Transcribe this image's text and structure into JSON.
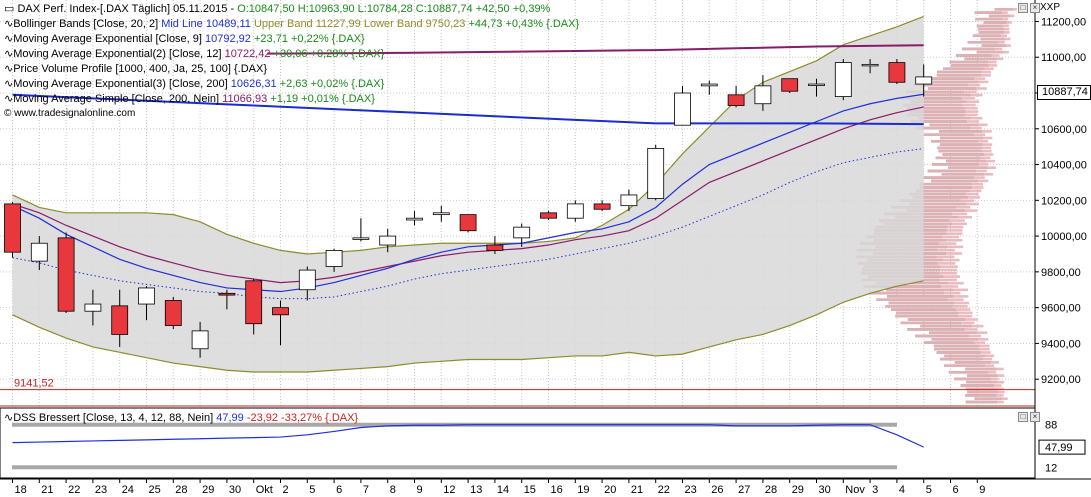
{
  "header": {
    "main": {
      "name": "DAX Perf. Index-[.DAX  Täglich] 05.11.2015 -",
      "ohlc": "O:10847,50 H:10963,90 L:10784,28 C:10887,74 +42,50 +0,39%"
    },
    "indicators": [
      {
        "name": "Bollinger Bands [Close, 20, 2]",
        "mid": "Mid Line 10489,11",
        "upper": "Upper Band 11227,99",
        "lower": "Lower Band 9750,23",
        "change": "+44,73 +0,43% {.DAX}"
      },
      {
        "name": "Moving Average Exponential [Close, 9]",
        "value": "10792,92",
        "change": "+23,71 +0,22% {.DAX}"
      },
      {
        "name": "Moving Average Exponential(2) [Close, 12]",
        "value": "10722,42",
        "change": "+30,06 +0,28% {.DAX}"
      },
      {
        "name": "Price Volume Profile [1000, 400, Ja, 25, 100] {.DAX}"
      },
      {
        "name": "Moving Average Exponential(3) [Close, 200]",
        "value": "10626,31",
        "change": "+2,63 +0,02% {.DAX}"
      },
      {
        "name": "Moving Average Simple [Close, 200, Nein]",
        "value": "11066,93",
        "change": "+1,19 +0,01% {.DAX}"
      }
    ],
    "copyright": "© www.tradesignalonline.com",
    "axis_title": "XXP",
    "window_buttons": [
      "□",
      "×"
    ]
  },
  "dss": {
    "name": "DSS Bressert [Close, 13, 4, 12, 88, Nein]",
    "value": "47,99",
    "change": "-23,92 -33,27% {.DAX}",
    "levels": [
      "88",
      "47,99",
      "12"
    ]
  },
  "price_tag": "10887,74",
  "support_label": "9141,52",
  "colors": {
    "up": "#ffffff",
    "down": "#e8383d",
    "bb_fill": "#d8d8d8",
    "bb_line": "#8c8c2c",
    "ema9": "#1f2fd8",
    "ema12": "#8a1a6a",
    "ema200": "#1a2bd0",
    "sma200": "#8a1a6a",
    "dss": "#1f2fd8",
    "support": "#d02020"
  },
  "chart_data": {
    "type": "candlestick",
    "y_ticks": [
      "11200,00",
      "11000,00",
      "10800,00",
      "10600,00",
      "10400,00",
      "10200,00",
      "10000,00",
      "9800,00",
      "9600,00",
      "9400,00",
      "9200,00"
    ],
    "ylim": [
      9050,
      11320
    ],
    "x_labels": [
      "18",
      "21",
      "22",
      "23",
      "24",
      "25",
      "28",
      "29",
      "30",
      "Okt",
      "2",
      "5",
      "6",
      "7",
      "8",
      "9",
      "12",
      "13",
      "14",
      "15",
      "16",
      "19",
      "20",
      "21",
      "22",
      "23",
      "26",
      "27",
      "28",
      "29",
      "30",
      "Nov",
      "3",
      "4",
      "5",
      "6",
      "9"
    ],
    "candles": [
      {
        "o": 10180,
        "h": 10190,
        "l": 9880,
        "c": 9910
      },
      {
        "o": 9860,
        "h": 10000,
        "l": 9810,
        "c": 9960
      },
      {
        "o": 9990,
        "h": 10020,
        "l": 9570,
        "c": 9580
      },
      {
        "o": 9580,
        "h": 9700,
        "l": 9500,
        "c": 9620
      },
      {
        "o": 9610,
        "h": 9700,
        "l": 9380,
        "c": 9450
      },
      {
        "o": 9620,
        "h": 9720,
        "l": 9530,
        "c": 9710
      },
      {
        "o": 9640,
        "h": 9660,
        "l": 9480,
        "c": 9500
      },
      {
        "o": 9370,
        "h": 9520,
        "l": 9320,
        "c": 9470
      },
      {
        "o": 9680,
        "h": 9700,
        "l": 9590,
        "c": 9670
      },
      {
        "o": 9750,
        "h": 9760,
        "l": 9450,
        "c": 9510
      },
      {
        "o": 9600,
        "h": 9640,
        "l": 9390,
        "c": 9560
      },
      {
        "o": 9700,
        "h": 9830,
        "l": 9640,
        "c": 9810
      },
      {
        "o": 9830,
        "h": 9930,
        "l": 9800,
        "c": 9920
      },
      {
        "o": 9990,
        "h": 10100,
        "l": 9970,
        "c": 9990
      },
      {
        "o": 9950,
        "h": 10040,
        "l": 9910,
        "c": 10000
      },
      {
        "o": 10090,
        "h": 10140,
        "l": 10060,
        "c": 10100
      },
      {
        "o": 10120,
        "h": 10170,
        "l": 10080,
        "c": 10130
      },
      {
        "o": 10120,
        "h": 10120,
        "l": 10020,
        "c": 10030
      },
      {
        "o": 9950,
        "h": 10000,
        "l": 9900,
        "c": 9920
      },
      {
        "o": 9990,
        "h": 10070,
        "l": 9940,
        "c": 10050
      },
      {
        "o": 10130,
        "h": 10140,
        "l": 10090,
        "c": 10100
      },
      {
        "o": 10100,
        "h": 10200,
        "l": 10080,
        "c": 10180
      },
      {
        "o": 10180,
        "h": 10200,
        "l": 10140,
        "c": 10150
      },
      {
        "o": 10170,
        "h": 10260,
        "l": 10140,
        "c": 10230
      },
      {
        "o": 10210,
        "h": 10510,
        "l": 10200,
        "c": 10490
      },
      {
        "o": 10620,
        "h": 10840,
        "l": 10620,
        "c": 10800
      },
      {
        "o": 10840,
        "h": 10870,
        "l": 10790,
        "c": 10850
      },
      {
        "o": 10790,
        "h": 10840,
        "l": 10720,
        "c": 10730
      },
      {
        "o": 10740,
        "h": 10900,
        "l": 10700,
        "c": 10840
      },
      {
        "o": 10880,
        "h": 10880,
        "l": 10800,
        "c": 10810
      },
      {
        "o": 10850,
        "h": 10880,
        "l": 10780,
        "c": 10850
      },
      {
        "o": 10780,
        "h": 10990,
        "l": 10760,
        "c": 10970
      },
      {
        "o": 10960,
        "h": 10990,
        "l": 10910,
        "c": 10960
      },
      {
        "o": 10970,
        "h": 10990,
        "l": 10850,
        "c": 10860
      },
      {
        "o": 10850,
        "h": 10960,
        "l": 10780,
        "c": 10890
      }
    ],
    "bb_upper": [
      10230,
      10160,
      10130,
      10130,
      10130,
      10130,
      10120,
      10080,
      10010,
      9960,
      9920,
      9900,
      9910,
      9920,
      9940,
      9950,
      9960,
      9960,
      9960,
      9960,
      9970,
      9990,
      10060,
      10150,
      10290,
      10460,
      10610,
      10760,
      10860,
      10920,
      10980,
      11070,
      11120,
      11170,
      11228
    ],
    "bb_lower": [
      9560,
      9490,
      9430,
      9380,
      9350,
      9320,
      9290,
      9270,
      9250,
      9240,
      9240,
      9240,
      9250,
      9260,
      9270,
      9290,
      9300,
      9310,
      9310,
      9310,
      9320,
      9330,
      9330,
      9350,
      9330,
      9340,
      9380,
      9420,
      9450,
      9500,
      9560,
      9630,
      9680,
      9720,
      9750
    ],
    "bb_mid": [
      9880,
      9850,
      9810,
      9780,
      9750,
      9730,
      9710,
      9690,
      9680,
      9660,
      9650,
      9650,
      9660,
      9690,
      9720,
      9760,
      9790,
      9810,
      9830,
      9850,
      9870,
      9900,
      9930,
      9960,
      10000,
      10050,
      10110,
      10170,
      10230,
      10300,
      10360,
      10410,
      10440,
      10470,
      10489
    ],
    "ema9": [
      10170,
      10100,
      10010,
      9940,
      9870,
      9820,
      9780,
      9740,
      9710,
      9700,
      9690,
      9710,
      9740,
      9780,
      9820,
      9870,
      9910,
      9940,
      9950,
      9960,
      9990,
      10020,
      10040,
      10080,
      10160,
      10290,
      10400,
      10460,
      10520,
      10580,
      10640,
      10700,
      10740,
      10770,
      10793
    ],
    "ema12": [
      10180,
      10130,
      10060,
      10000,
      9940,
      9890,
      9850,
      9810,
      9780,
      9760,
      9740,
      9750,
      9770,
      9800,
      9830,
      9860,
      9890,
      9910,
      9920,
      9930,
      9950,
      9980,
      10000,
      10030,
      10100,
      10200,
      10300,
      10360,
      10420,
      10480,
      10540,
      10600,
      10650,
      10690,
      10722
    ],
    "ema200_x": [
      0,
      3,
      6,
      9,
      12,
      15,
      18,
      21,
      24,
      27,
      30,
      34
    ],
    "ema200": [
      10790,
      10770,
      10750,
      10730,
      10710,
      10690,
      10670,
      10650,
      10630,
      10630,
      10630,
      10626
    ],
    "sma200_x": [
      9.5,
      12,
      15,
      18,
      21,
      24,
      27,
      30,
      34
    ],
    "sma200": [
      11020,
      11022,
      11025,
      11030,
      11035,
      11040,
      11050,
      11060,
      11067
    ],
    "dss_values": [
      56,
      57,
      58,
      59,
      60,
      61,
      62,
      63,
      64,
      65,
      66,
      70,
      76,
      83,
      86,
      87,
      87,
      88,
      88,
      88,
      88,
      88,
      88,
      88,
      88,
      88,
      88,
      86,
      86,
      86,
      87,
      88,
      88,
      70,
      48
    ],
    "dss_ylim": [
      0,
      100
    ],
    "dss_ticks": [
      88,
      48,
      12
    ]
  }
}
